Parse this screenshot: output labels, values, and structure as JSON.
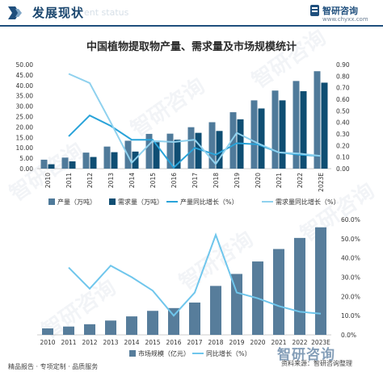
{
  "header": {
    "title": "发展现状",
    "watermark": "ent status",
    "brand_name": "智研咨询",
    "brand_url": "www.chyxx.com"
  },
  "chart_title": "中国植物提取物产量、需求量及市场规模统计",
  "background_watermark": "智研咨询",
  "footer": {
    "left": "精品报告 · 专项定制 · 品质服务",
    "right": "资料来源：智研咨询整理",
    "badge": "智研咨询"
  },
  "chart_data": [
    {
      "type": "bar",
      "categories": [
        "2010",
        "2011",
        "2012",
        "2013",
        "2014",
        "2015",
        "2016",
        "2017",
        "2018",
        "2019",
        "2020",
        "2021",
        "2022",
        "2023E"
      ],
      "series": [
        {
          "name": "产量（万吨）",
          "kind": "bar",
          "axis": "left",
          "color": "#4f7a9a",
          "values": [
            4.3,
            5.3,
            7.7,
            10.6,
            13.4,
            16.7,
            16.8,
            19.9,
            22.3,
            27.1,
            32.8,
            37.5,
            42.1,
            46.8
          ]
        },
        {
          "name": "需求量（万吨）",
          "kind": "bar",
          "axis": "left",
          "color": "#0f4e73",
          "values": [
            2.1,
            3.5,
            5.6,
            7.9,
            8.2,
            12.7,
            13.9,
            17.2,
            18.1,
            23.7,
            28.9,
            32.8,
            37.2,
            41.3
          ]
        },
        {
          "name": "产量同比增长（%）",
          "kind": "line",
          "axis": "right",
          "color": "#29a3d9",
          "values": [
            null,
            0.28,
            0.46,
            0.37,
            0.25,
            0.25,
            0.01,
            0.18,
            0.12,
            0.22,
            0.21,
            0.14,
            0.12,
            0.11
          ]
        },
        {
          "name": "需求量同比增长（%）",
          "kind": "line",
          "axis": "right",
          "color": "#8fd1ee",
          "values": [
            null,
            0.82,
            0.74,
            0.4,
            0.05,
            0.24,
            0.23,
            0.25,
            0.04,
            0.31,
            0.22,
            0.14,
            0.13,
            0.11
          ]
        }
      ],
      "y_left": {
        "ticks": [
          "0.00",
          "5.00",
          "10.00",
          "15.00",
          "20.00",
          "25.00",
          "30.00",
          "35.00",
          "40.00",
          "45.00",
          "50.00"
        ],
        "ylim": [
          0,
          50
        ]
      },
      "y_right": {
        "ticks": [
          "0.00",
          "0.10",
          "0.20",
          "0.30",
          "0.40",
          "0.50",
          "0.60",
          "0.70",
          "0.80",
          "0.90"
        ],
        "ylim": [
          0,
          0.9
        ]
      },
      "legend_placement": "bottom",
      "grid": false
    },
    {
      "type": "bar",
      "categories": [
        "2010",
        "2011",
        "2012",
        "2013",
        "2014",
        "2015",
        "2016",
        "2017",
        "2018",
        "2019",
        "2020",
        "2021",
        "2022",
        "2023E"
      ],
      "series": [
        {
          "name": "市场规模（亿元）",
          "kind": "bar",
          "axis": "left",
          "color": "#577d9b",
          "values": [
            14,
            18,
            23,
            31,
            40,
            52,
            58,
            70,
            106,
            132,
            159,
            186,
            210,
            233
          ]
        },
        {
          "name": "同比增长（%）",
          "kind": "line",
          "axis": "right",
          "color": "#6fc6ec",
          "values": [
            null,
            0.35,
            0.24,
            0.36,
            0.3,
            0.23,
            0.1,
            0.22,
            0.52,
            0.22,
            0.19,
            0.15,
            0.12,
            0.11
          ]
        }
      ],
      "y_right": {
        "ticks": [
          "0.0%",
          "10.0%",
          "20.0%",
          "30.0%",
          "40.0%",
          "50.0%",
          "60.0%"
        ],
        "ylim": [
          0,
          0.6
        ]
      },
      "y_left_max": 250,
      "legend_placement": "bottom",
      "grid": false
    }
  ]
}
